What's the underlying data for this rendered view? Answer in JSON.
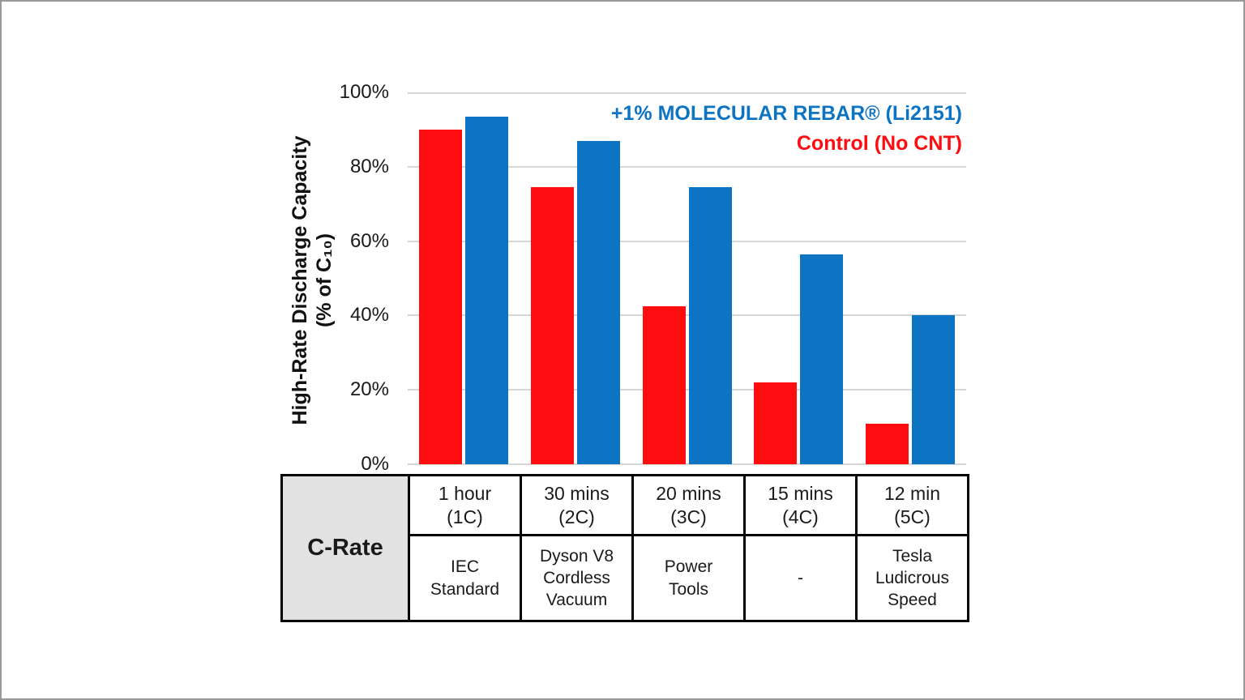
{
  "frame": {
    "border_color": "#999999",
    "background": "#FFFFFF"
  },
  "chart": {
    "y_axis_title_line1": "High-Rate Discharge Capacity",
    "y_axis_title_line2": "(% of C₁₀)",
    "gridline_color": "#D6D6D6",
    "tick_label_color": "#1A1A1A"
  },
  "chart_data": {
    "type": "bar",
    "categories": [
      "1 hour (1C)",
      "30 mins (2C)",
      "20 mins (3C)",
      "15 mins (4C)",
      "12 min (5C)"
    ],
    "series": [
      {
        "name": "Control (No CNT)",
        "color": "#FE0D10",
        "values": [
          90,
          74.5,
          42.5,
          22,
          11
        ]
      },
      {
        "name": "+1% MOLECULAR REBAR® (Li2151)",
        "color": "#0D74C4",
        "values": [
          93.5,
          87,
          74.5,
          56.5,
          40
        ]
      }
    ],
    "ylabel": "High-Rate Discharge Capacity (% of C₁₀)",
    "xlabel": "C-Rate",
    "ylim": [
      0,
      100
    ],
    "yticks": [
      0,
      20,
      40,
      60,
      80,
      100
    ],
    "ytick_suffix": "%",
    "grid": true,
    "legend_position": "top-right-inside"
  },
  "table": {
    "header": "C-Rate",
    "header_background": "#E2E2E2",
    "columns": [
      {
        "rate": "1 hour\n(1C)",
        "application": "IEC\nStandard"
      },
      {
        "rate": "30 mins\n(2C)",
        "application": "Dyson V8\nCordless\nVacuum"
      },
      {
        "rate": "20 mins\n(3C)",
        "application": "Power\nTools"
      },
      {
        "rate": "15 mins\n(4C)",
        "application": "-"
      },
      {
        "rate": "12 min\n(5C)",
        "application": "Tesla\nLudicrous\nSpeed"
      }
    ]
  }
}
